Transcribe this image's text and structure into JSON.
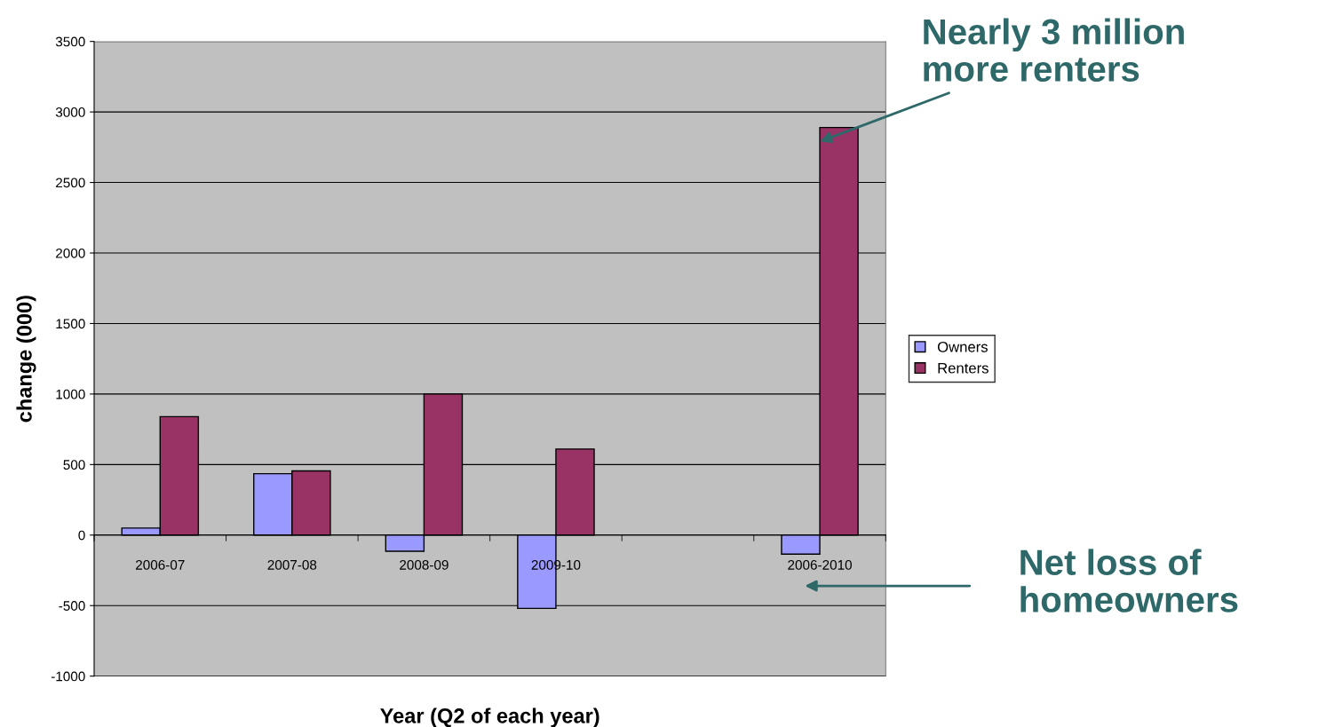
{
  "chart_data": {
    "type": "bar",
    "xlabel": "Year (Q2 of each year)",
    "ylabel": "change (000)",
    "categories": [
      "2006-07",
      "2007-08",
      "2008-09",
      "2009-10",
      null,
      "2006-2010"
    ],
    "series": [
      {
        "name": "Owners",
        "color": "#9999ff",
        "values": [
          50,
          435,
          -115,
          -520,
          null,
          -135
        ]
      },
      {
        "name": "Renters",
        "color": "#993366",
        "values": [
          840,
          455,
          1000,
          610,
          null,
          2890
        ]
      }
    ],
    "ylim": [
      -1000,
      3500
    ],
    "yticks": [
      -1000,
      -500,
      0,
      500,
      1000,
      1500,
      2000,
      2500,
      3000,
      3500
    ],
    "grid": "y",
    "legend": "right",
    "annotations": [
      {
        "text": "Nearly 3 million\nmore renters",
        "x": "2006-2010",
        "y": 2790
      },
      "Net loss of\nhomeowners"
    ]
  }
}
